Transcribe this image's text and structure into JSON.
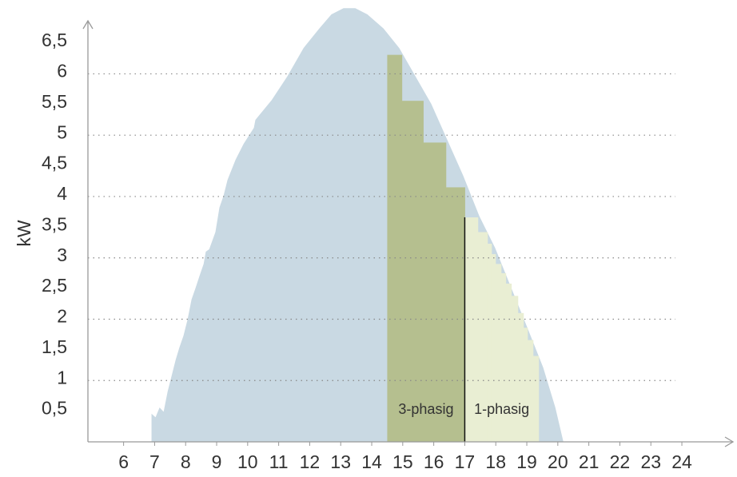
{
  "chart_data": {
    "type": "area",
    "ylabel": "kW",
    "xlim": [
      4.85,
      25.7
    ],
    "ylim": [
      0,
      7.1
    ],
    "xticks": [
      6,
      7,
      8,
      9,
      10,
      11,
      12,
      13,
      14,
      15,
      16,
      17,
      18,
      19,
      20,
      21,
      22,
      23,
      24
    ],
    "yticks": [
      {
        "value": 0.5,
        "label": "0,5"
      },
      1,
      {
        "value": 1.5,
        "label": "1,5"
      },
      2,
      {
        "value": 2.5,
        "label": "2,5"
      },
      3,
      {
        "value": 3.5,
        "label": "3,5"
      },
      4,
      {
        "value": 4.5,
        "label": "4,5"
      },
      5,
      {
        "value": 5.5,
        "label": "5,5"
      },
      6,
      {
        "value": 6.5,
        "label": "6,5"
      }
    ],
    "grid": "integer",
    "series": [
      {
        "type": "area",
        "color": "#c9d9e3",
        "x": [
          6.9,
          6.9,
          7.03,
          7.16,
          7.29,
          7.42,
          7.55,
          7.68,
          7.8,
          7.93,
          8.06,
          8.19,
          8.32,
          8.45,
          8.58,
          8.65,
          8.76,
          8.96,
          9.09,
          9.22,
          9.35,
          9.61,
          9.87,
          10.2,
          10.25,
          10.77,
          11.28,
          11.8,
          12.31,
          12.7,
          13.09,
          13.47,
          13.86,
          14.38,
          14.89,
          15.41,
          15.92,
          16.44,
          16.95,
          17.47,
          17.98,
          18.5,
          19.02,
          19.53,
          19.92,
          20.18
        ],
        "values": [
          0,
          0.46,
          0.4,
          0.56,
          0.49,
          0.82,
          1.08,
          1.34,
          1.54,
          1.73,
          1.99,
          2.32,
          2.51,
          2.71,
          2.9,
          3.1,
          3.14,
          3.42,
          3.82,
          4.01,
          4.27,
          4.6,
          4.86,
          5.12,
          5.25,
          5.57,
          5.96,
          6.42,
          6.74,
          6.97,
          7.07,
          7.07,
          6.97,
          6.74,
          6.42,
          5.96,
          5.51,
          4.92,
          4.34,
          3.68,
          3.16,
          2.51,
          1.86,
          1.21,
          0.56,
          0
        ]
      },
      {
        "type": "step",
        "name": "3-phasig",
        "color": "#b5bf8f",
        "bins": [
          14.5,
          14.97,
          15.66,
          16.39,
          17.0
        ],
        "values": [
          6.31,
          5.56,
          4.88,
          4.15
        ]
      },
      {
        "type": "step",
        "name": "1-phasig",
        "color": "#e9eed3",
        "bins": [
          17.0,
          17.42,
          17.73,
          17.86,
          17.99,
          18.17,
          18.32,
          18.5,
          18.71,
          18.89,
          19.02,
          19.2,
          19.38
        ],
        "values": [
          3.66,
          3.42,
          3.23,
          3.06,
          2.9,
          2.75,
          2.58,
          2.38,
          2.1,
          1.86,
          1.66,
          1.4
        ]
      }
    ]
  }
}
